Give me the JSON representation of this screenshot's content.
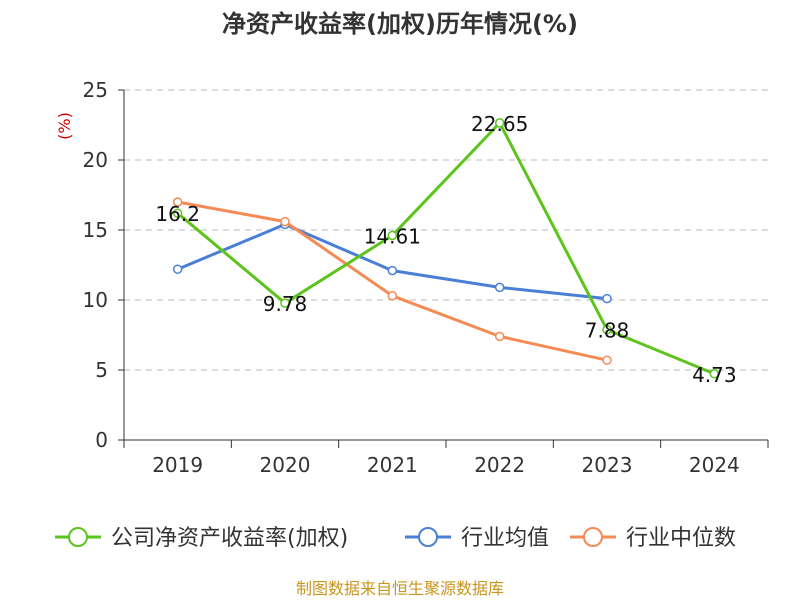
{
  "chart_data": {
    "type": "line",
    "title": "净资产收益率(加权)历年情况(%)",
    "ylabel": "(%)",
    "xlabel": "",
    "categories": [
      "2019",
      "2020",
      "2021",
      "2022",
      "2023",
      "2024"
    ],
    "ylim": [
      0,
      25
    ],
    "yticks": [
      0,
      5,
      10,
      15,
      20,
      25
    ],
    "grid": true,
    "legend_position": "bottom",
    "series": [
      {
        "name": "公司净资产收益率(加权)",
        "color": "#5cc41c",
        "values": [
          16.2,
          9.78,
          14.61,
          22.65,
          7.88,
          4.73
        ],
        "labels": [
          "16.2",
          "9.78",
          "14.61",
          "22.65",
          "7.88",
          "4.73"
        ]
      },
      {
        "name": "行业均值",
        "color": "#4a7fd8",
        "values": [
          12.2,
          15.4,
          12.1,
          10.9,
          10.1,
          null
        ]
      },
      {
        "name": "行业中位数",
        "color": "#f58a55",
        "values": [
          17.0,
          15.6,
          10.3,
          7.4,
          5.7,
          null
        ]
      }
    ]
  },
  "footer": {
    "source": "制图数据来自恒生聚源数据库"
  }
}
